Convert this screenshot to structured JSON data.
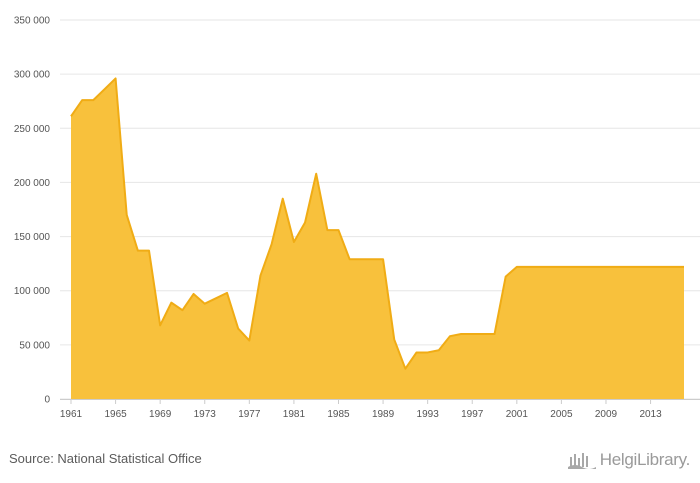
{
  "chart_data": {
    "type": "area",
    "x": [
      1961,
      1962,
      1963,
      1964,
      1965,
      1966,
      1967,
      1968,
      1969,
      1970,
      1971,
      1972,
      1973,
      1974,
      1975,
      1976,
      1977,
      1978,
      1979,
      1980,
      1981,
      1982,
      1983,
      1984,
      1985,
      1986,
      1987,
      1988,
      1989,
      1990,
      1991,
      1992,
      1993,
      1994,
      1995,
      1996,
      1997,
      1998,
      1999,
      2000,
      2001,
      2002,
      2003,
      2004,
      2005,
      2006,
      2007,
      2008,
      2009,
      2010,
      2011,
      2012,
      2013,
      2014,
      2015,
      2016
    ],
    "series": [
      {
        "values": [
          261000,
          276000,
          276000,
          286000,
          296000,
          170000,
          137000,
          137000,
          68000,
          89000,
          82000,
          97000,
          88000,
          93000,
          98000,
          65000,
          54000,
          114000,
          143000,
          185000,
          145000,
          163000,
          208000,
          156000,
          156000,
          129000,
          129000,
          129000,
          129000,
          55000,
          28000,
          43000,
          43000,
          45000,
          58000,
          60000,
          60000,
          60000,
          60000,
          113000,
          122000,
          122000,
          122000,
          122000,
          122000,
          122000,
          122000,
          122000,
          122000,
          122000,
          122000,
          122000,
          122000,
          122000,
          122000,
          122000
        ]
      }
    ],
    "xticks": [
      "1961",
      "1965",
      "1969",
      "1973",
      "1977",
      "1981",
      "1985",
      "1989",
      "1993",
      "1997",
      "2001",
      "2005",
      "2009",
      "2013"
    ],
    "yticks": [
      "0",
      "50 000",
      "100 000",
      "150 000",
      "200 000",
      "250 000",
      "300 000",
      "350 000"
    ],
    "xlim": [
      1961,
      2016
    ],
    "ylim": [
      0,
      350000
    ],
    "title": "",
    "xlabel": "",
    "ylabel": "",
    "grid": true,
    "fill_color": "#f8c13c",
    "line_color": "#f0ac15"
  },
  "footer": {
    "source": "Source: National Statistical Office",
    "brand": "HelgiLibrary."
  },
  "colors": {
    "grid": "#e6e6e6",
    "axis": "#cccccc",
    "text": "#5b5b5b"
  },
  "icons": {
    "brand_logo": "helgi-library-logo-icon"
  }
}
